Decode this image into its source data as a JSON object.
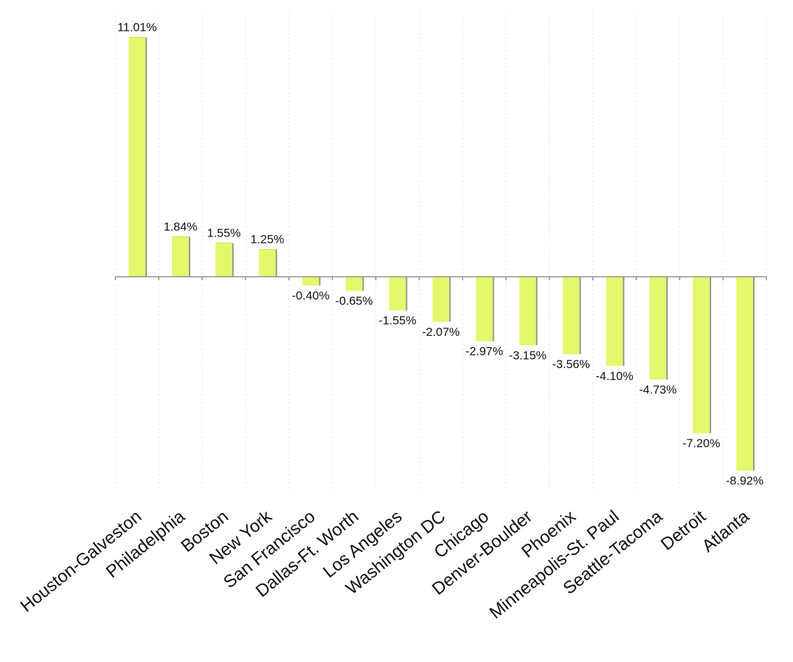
{
  "chart_data": {
    "type": "bar",
    "title": "",
    "xlabel": "",
    "ylabel": "",
    "ylim": [
      -9.9,
      12.15
    ],
    "grid": "vertical dotted",
    "bar_color": "#e5f76b",
    "categories": [
      "Houston-Galveston",
      "Philadelphia",
      "Boston",
      "New York",
      "San Francisco",
      "Dallas-Ft. Worth",
      "Los Angeles",
      "Washington DC",
      "Chicago",
      "Denver-Boulder",
      "Phoenix",
      "Minneapolis-St. Paul",
      "Seattle-Tacoma",
      "Detroit",
      "Atlanta"
    ],
    "values": [
      11.01,
      1.84,
      1.55,
      1.25,
      -0.4,
      -0.65,
      -1.55,
      -2.07,
      -2.97,
      -3.15,
      -3.56,
      -4.1,
      -4.73,
      -7.2,
      -8.92
    ],
    "data_labels": [
      "11.01%",
      "1.84%",
      "1.55%",
      "1.25%",
      "-0.40%",
      "-0.65%",
      "-1.55%",
      "-2.07%",
      "-2.97%",
      "-3.15%",
      "-3.56%",
      "-4.10%",
      "-4.73%",
      "-7.20%",
      "-8.92%"
    ]
  }
}
